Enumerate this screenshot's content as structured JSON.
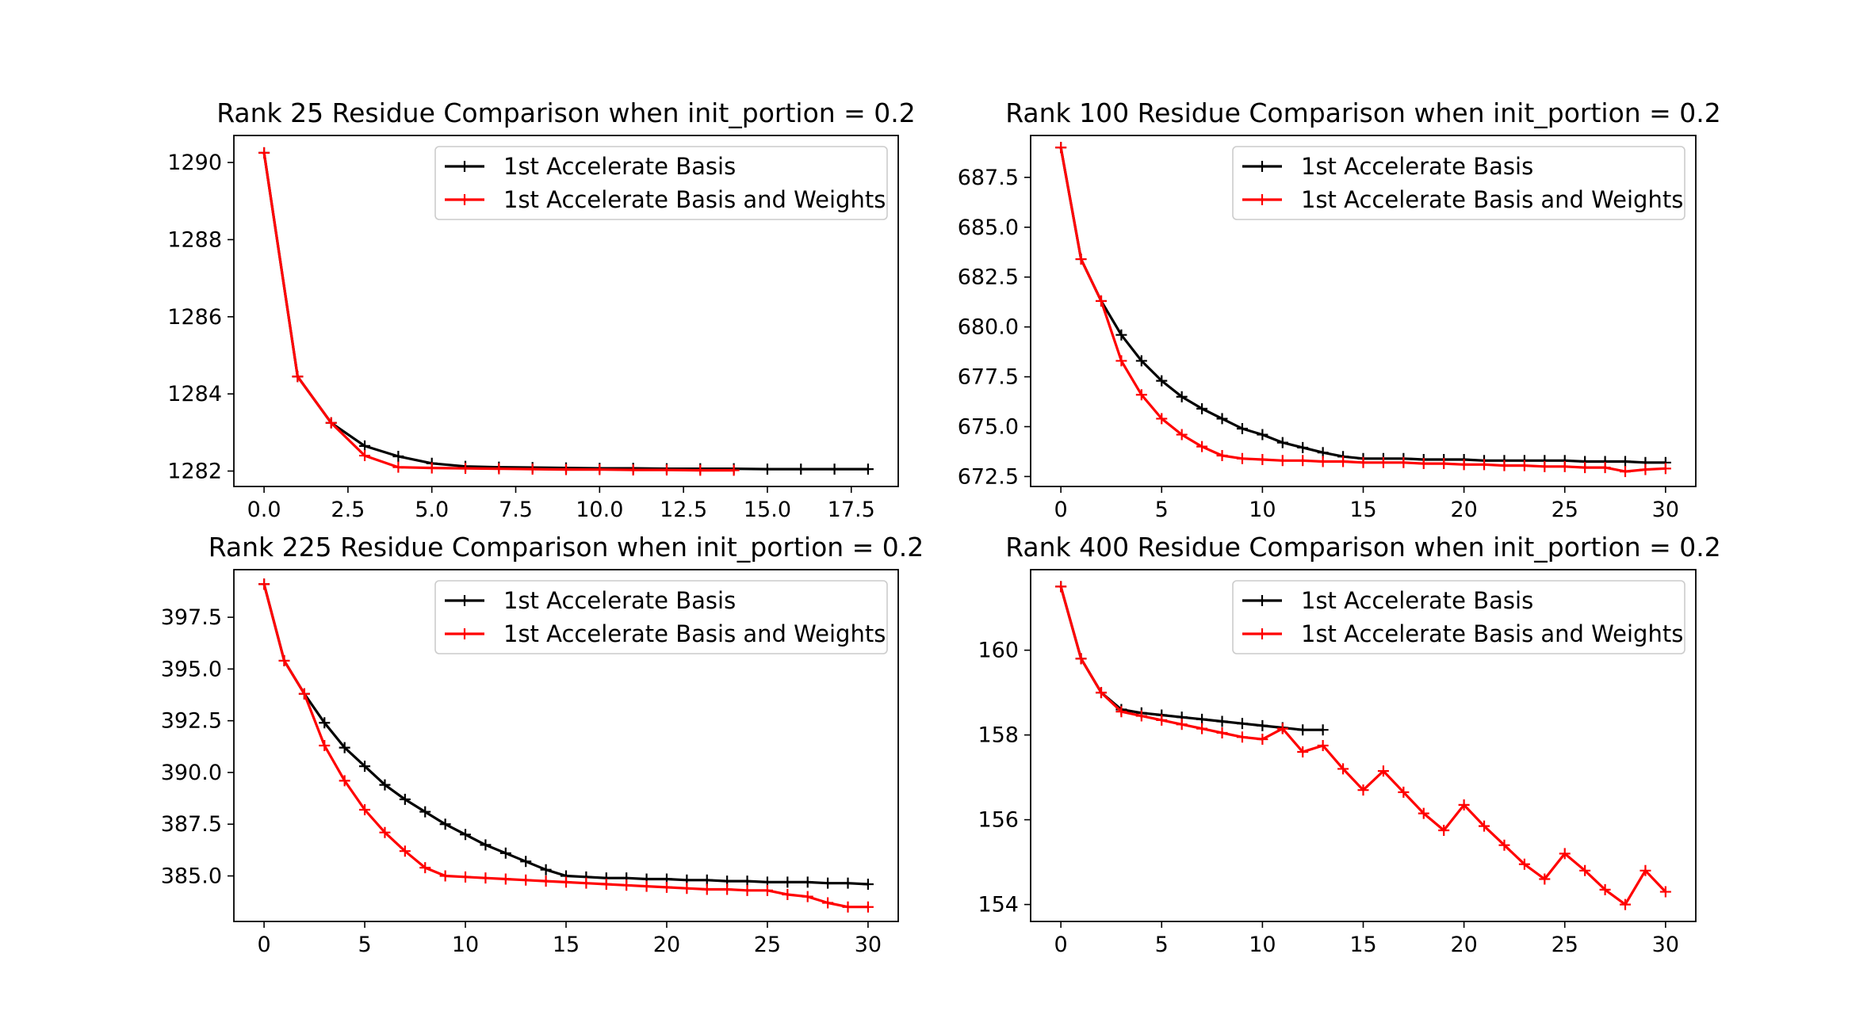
{
  "chart_data": [
    {
      "type": "line",
      "title": "Rank 25 Residue Comparison when init_portion = 0.2",
      "xlabel": "",
      "ylabel": "",
      "xlim": [
        -0.9,
        18.9
      ],
      "ylim": [
        1281.6,
        1290.7
      ],
      "xticks": [
        0,
        2.5,
        5,
        7.5,
        10,
        12.5,
        15,
        17.5
      ],
      "xtick_labels": [
        "0.0",
        "2.5",
        "5.0",
        "7.5",
        "10.0",
        "12.5",
        "15.0",
        "17.5"
      ],
      "yticks": [
        1282,
        1284,
        1286,
        1288,
        1290
      ],
      "ytick_labels": [
        "1282",
        "1284",
        "1286",
        "1288",
        "1290"
      ],
      "legend_position": "upper right",
      "series": [
        {
          "name": "1st Accelerate Basis",
          "color": "#000000",
          "marker": "+",
          "x": [
            0,
            1,
            2,
            3,
            4,
            5,
            6,
            7,
            8,
            9,
            10,
            11,
            12,
            13,
            14,
            15,
            16,
            17,
            18
          ],
          "values": [
            1290.25,
            1284.45,
            1283.25,
            1282.65,
            1282.38,
            1282.2,
            1282.12,
            1282.1,
            1282.09,
            1282.08,
            1282.07,
            1282.07,
            1282.06,
            1282.06,
            1282.06,
            1282.05,
            1282.05,
            1282.05,
            1282.05
          ]
        },
        {
          "name": "1st Accelerate Basis and Weights",
          "color": "#ff0000",
          "marker": "+",
          "x": [
            0,
            1,
            2,
            3,
            4,
            5,
            6,
            7,
            8,
            9,
            10,
            11,
            12,
            13,
            14
          ],
          "values": [
            1290.25,
            1284.45,
            1283.25,
            1282.4,
            1282.1,
            1282.08,
            1282.07,
            1282.06,
            1282.05,
            1282.04,
            1282.04,
            1282.03,
            1282.03,
            1282.02,
            1282.02
          ]
        }
      ]
    },
    {
      "type": "line",
      "title": "Rank 100 Residue Comparison when init_portion = 0.2",
      "xlabel": "",
      "ylabel": "",
      "xlim": [
        -1.5,
        31.5
      ],
      "ylim": [
        672.0,
        689.6
      ],
      "xticks": [
        0,
        5,
        10,
        15,
        20,
        25,
        30
      ],
      "xtick_labels": [
        "0",
        "5",
        "10",
        "15",
        "20",
        "25",
        "30"
      ],
      "yticks": [
        672.5,
        675.0,
        677.5,
        680.0,
        682.5,
        685.0,
        687.5
      ],
      "ytick_labels": [
        "672.5",
        "675.0",
        "677.5",
        "680.0",
        "682.5",
        "685.0",
        "687.5"
      ],
      "legend_position": "upper right",
      "series": [
        {
          "name": "1st Accelerate Basis",
          "color": "#000000",
          "marker": "+",
          "x": [
            0,
            1,
            2,
            3,
            4,
            5,
            6,
            7,
            8,
            9,
            10,
            11,
            12,
            13,
            14,
            15,
            16,
            17,
            18,
            19,
            20,
            21,
            22,
            23,
            24,
            25,
            26,
            27,
            28,
            29,
            30
          ],
          "values": [
            689.0,
            683.4,
            681.3,
            679.6,
            678.3,
            677.3,
            676.5,
            675.9,
            675.4,
            674.9,
            674.6,
            674.2,
            673.95,
            673.7,
            673.5,
            673.4,
            673.4,
            673.4,
            673.35,
            673.35,
            673.35,
            673.3,
            673.3,
            673.3,
            673.3,
            673.3,
            673.25,
            673.25,
            673.25,
            673.2,
            673.2
          ]
        },
        {
          "name": "1st Accelerate Basis and Weights",
          "color": "#ff0000",
          "marker": "+",
          "x": [
            0,
            1,
            2,
            3,
            4,
            5,
            6,
            7,
            8,
            9,
            10,
            11,
            12,
            13,
            14,
            15,
            16,
            17,
            18,
            19,
            20,
            21,
            22,
            23,
            24,
            25,
            26,
            27,
            28,
            29,
            30
          ],
          "values": [
            689.0,
            683.4,
            681.3,
            678.3,
            676.6,
            675.4,
            674.6,
            674.0,
            673.55,
            673.4,
            673.35,
            673.3,
            673.3,
            673.25,
            673.25,
            673.2,
            673.2,
            673.2,
            673.15,
            673.15,
            673.1,
            673.1,
            673.05,
            673.05,
            673.0,
            673.0,
            672.95,
            672.95,
            672.75,
            672.85,
            672.9
          ]
        }
      ]
    },
    {
      "type": "line",
      "title": "Rank 225 Residue Comparison when init_portion = 0.2",
      "xlabel": "",
      "ylabel": "",
      "xlim": [
        -1.5,
        31.5
      ],
      "ylim": [
        382.8,
        399.8
      ],
      "xticks": [
        0,
        5,
        10,
        15,
        20,
        25,
        30
      ],
      "xtick_labels": [
        "0",
        "5",
        "10",
        "15",
        "20",
        "25",
        "30"
      ],
      "yticks": [
        385.0,
        387.5,
        390.0,
        392.5,
        395.0,
        397.5
      ],
      "ytick_labels": [
        "385.0",
        "387.5",
        "390.0",
        "392.5",
        "395.0",
        "397.5"
      ],
      "legend_position": "upper right",
      "series": [
        {
          "name": "1st Accelerate Basis",
          "color": "#000000",
          "marker": "+",
          "x": [
            0,
            1,
            2,
            3,
            4,
            5,
            6,
            7,
            8,
            9,
            10,
            11,
            12,
            13,
            14,
            15,
            16,
            17,
            18,
            19,
            20,
            21,
            22,
            23,
            24,
            25,
            26,
            27,
            28,
            29,
            30
          ],
          "values": [
            399.1,
            395.4,
            393.8,
            392.4,
            391.2,
            390.3,
            389.4,
            388.7,
            388.1,
            387.5,
            387.0,
            386.5,
            386.1,
            385.7,
            385.3,
            385.0,
            384.95,
            384.9,
            384.9,
            384.85,
            384.85,
            384.8,
            384.8,
            384.75,
            384.75,
            384.7,
            384.7,
            384.7,
            384.65,
            384.65,
            384.6
          ]
        },
        {
          "name": "1st Accelerate Basis and Weights",
          "color": "#ff0000",
          "marker": "+",
          "x": [
            0,
            1,
            2,
            3,
            4,
            5,
            6,
            7,
            8,
            9,
            10,
            11,
            12,
            13,
            14,
            15,
            16,
            17,
            18,
            19,
            20,
            21,
            22,
            23,
            24,
            25,
            26,
            27,
            28,
            29,
            30
          ],
          "values": [
            399.1,
            395.4,
            393.8,
            391.3,
            389.6,
            388.2,
            387.1,
            386.2,
            385.4,
            385.0,
            384.95,
            384.9,
            384.85,
            384.8,
            384.75,
            384.7,
            384.65,
            384.6,
            384.55,
            384.5,
            384.45,
            384.4,
            384.35,
            384.35,
            384.3,
            384.3,
            384.1,
            384.0,
            383.7,
            383.5,
            383.5
          ]
        }
      ]
    },
    {
      "type": "line",
      "title": "Rank 400 Residue Comparison when init_portion = 0.2",
      "xlabel": "",
      "ylabel": "",
      "xlim": [
        -1.5,
        31.5
      ],
      "ylim": [
        153.6,
        161.9
      ],
      "xticks": [
        0,
        5,
        10,
        15,
        20,
        25,
        30
      ],
      "xtick_labels": [
        "0",
        "5",
        "10",
        "15",
        "20",
        "25",
        "30"
      ],
      "yticks": [
        154,
        156,
        158,
        160
      ],
      "ytick_labels": [
        "154",
        "156",
        "158",
        "160"
      ],
      "legend_position": "upper right",
      "series": [
        {
          "name": "1st Accelerate Basis",
          "color": "#000000",
          "marker": "+",
          "x": [
            0,
            1,
            2,
            3,
            4,
            5,
            6,
            7,
            8,
            9,
            10,
            11,
            12,
            13
          ],
          "values": [
            161.5,
            159.8,
            159.0,
            158.6,
            158.52,
            158.47,
            158.42,
            158.37,
            158.32,
            158.27,
            158.22,
            158.17,
            158.12,
            158.12
          ]
        },
        {
          "name": "1st Accelerate Basis and Weights",
          "color": "#ff0000",
          "marker": "+",
          "x": [
            0,
            1,
            2,
            3,
            4,
            5,
            6,
            7,
            8,
            9,
            10,
            11,
            12,
            13,
            14,
            15,
            16,
            17,
            18,
            19,
            20,
            21,
            22,
            23,
            24,
            25,
            26,
            27,
            28,
            29,
            30
          ],
          "values": [
            161.5,
            159.8,
            159.0,
            158.55,
            158.45,
            158.35,
            158.25,
            158.15,
            158.05,
            157.95,
            157.9,
            158.15,
            157.6,
            157.75,
            157.2,
            156.7,
            157.15,
            156.65,
            156.15,
            155.75,
            156.35,
            155.85,
            155.4,
            154.95,
            154.6,
            155.2,
            154.8,
            154.35,
            154.0,
            154.8,
            154.3
          ]
        }
      ]
    }
  ]
}
